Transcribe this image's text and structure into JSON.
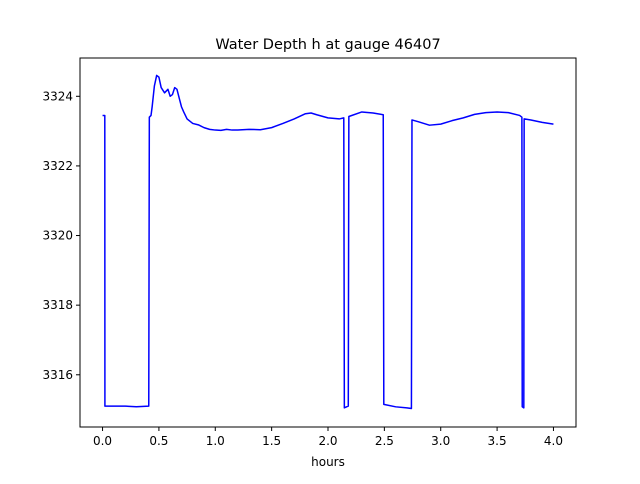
{
  "chart_data": {
    "type": "line",
    "title": "Water Depth h at gauge 46407",
    "xlabel": "hours",
    "ylabel": "",
    "xlim": [
      -0.2,
      4.2
    ],
    "ylim": [
      3314.5,
      3325.1
    ],
    "xticks": [
      0.0,
      0.5,
      1.0,
      1.5,
      2.0,
      2.5,
      3.0,
      3.5,
      4.0
    ],
    "xtick_labels": [
      "0.0",
      "0.5",
      "1.0",
      "1.5",
      "2.0",
      "2.5",
      "3.0",
      "3.5",
      "4.0"
    ],
    "yticks": [
      3316,
      3318,
      3320,
      3322,
      3324
    ],
    "ytick_labels": [
      "3316",
      "3318",
      "3320",
      "3322",
      "3324"
    ],
    "grid": false,
    "legend": false,
    "series": [
      {
        "color": "#0000ff",
        "x": [
          0.0,
          0.02,
          0.021,
          0.1,
          0.2,
          0.3,
          0.41,
          0.415,
          0.43,
          0.44,
          0.46,
          0.48,
          0.5,
          0.52,
          0.55,
          0.58,
          0.6,
          0.62,
          0.64,
          0.66,
          0.68,
          0.7,
          0.72,
          0.75,
          0.8,
          0.85,
          0.9,
          0.95,
          1.0,
          1.05,
          1.1,
          1.15,
          1.2,
          1.3,
          1.4,
          1.5,
          1.6,
          1.7,
          1.8,
          1.85,
          1.9,
          2.0,
          2.1,
          2.14,
          2.145,
          2.18,
          2.185,
          2.3,
          2.4,
          2.49,
          2.495,
          2.6,
          2.7,
          2.74,
          2.745,
          2.8,
          2.9,
          3.0,
          3.1,
          3.2,
          3.3,
          3.4,
          3.5,
          3.6,
          3.7,
          3.72,
          3.723,
          3.737,
          3.74,
          3.8,
          3.9,
          4.0
        ],
        "y": [
          3323.45,
          3323.45,
          3315.1,
          3315.1,
          3315.1,
          3315.08,
          3315.1,
          3323.4,
          3323.45,
          3323.7,
          3324.3,
          3324.6,
          3324.55,
          3324.25,
          3324.1,
          3324.2,
          3324.0,
          3324.05,
          3324.25,
          3324.2,
          3323.95,
          3323.7,
          3323.55,
          3323.35,
          3323.22,
          3323.18,
          3323.1,
          3323.05,
          3323.03,
          3323.02,
          3323.05,
          3323.03,
          3323.03,
          3323.05,
          3323.04,
          3323.1,
          3323.22,
          3323.35,
          3323.5,
          3323.52,
          3323.47,
          3323.38,
          3323.35,
          3323.38,
          3315.05,
          3315.1,
          3323.42,
          3323.55,
          3323.52,
          3323.47,
          3315.15,
          3315.08,
          3315.05,
          3315.03,
          3323.32,
          3323.27,
          3323.17,
          3323.2,
          3323.3,
          3323.38,
          3323.48,
          3323.53,
          3323.55,
          3323.53,
          3323.45,
          3323.4,
          3315.08,
          3315.05,
          3323.35,
          3323.32,
          3323.25,
          3323.2
        ]
      }
    ]
  }
}
